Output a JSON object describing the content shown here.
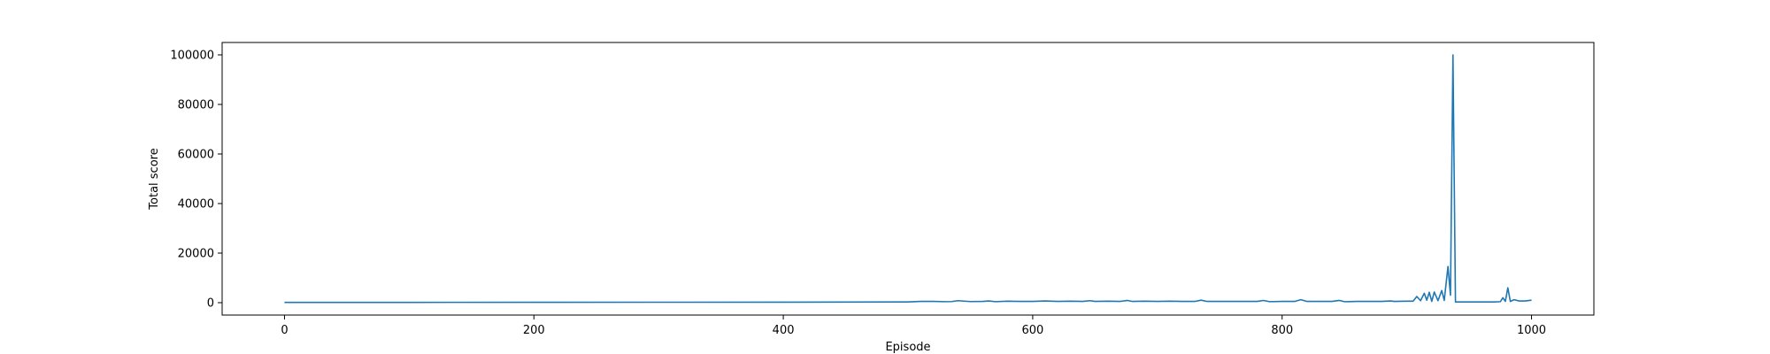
{
  "chart_data": {
    "type": "line",
    "title": "",
    "xlabel": "Episode",
    "ylabel": "Total score",
    "xlim": [
      -50,
      1050
    ],
    "ylim": [
      -5000,
      105000
    ],
    "xticks": [
      0,
      200,
      400,
      600,
      800,
      1000
    ],
    "yticks": [
      0,
      20000,
      40000,
      60000,
      80000,
      100000
    ],
    "grid": false,
    "legend": "none",
    "series": [
      {
        "name": "Total score",
        "color": "#1f77b4",
        "x": [
          0,
          100,
          200,
          300,
          400,
          450,
          500,
          510,
          520,
          530,
          535,
          540,
          550,
          560,
          565,
          570,
          580,
          590,
          600,
          610,
          620,
          630,
          640,
          646,
          650,
          660,
          670,
          676,
          680,
          690,
          700,
          710,
          720,
          730,
          735,
          740,
          750,
          760,
          770,
          780,
          785,
          790,
          800,
          810,
          815,
          820,
          830,
          840,
          846,
          850,
          860,
          870,
          880,
          887,
          890,
          900,
          905,
          908,
          911,
          914,
          916,
          918,
          920,
          922,
          925,
          928,
          930,
          933,
          935,
          937,
          939,
          940,
          945,
          950,
          960,
          970,
          975,
          977,
          979,
          981,
          983,
          986,
          990,
          995,
          1000
        ],
        "values": [
          100,
          120,
          150,
          180,
          200,
          250,
          300,
          500,
          500,
          400,
          450,
          800,
          450,
          500,
          700,
          400,
          600,
          500,
          500,
          700,
          500,
          600,
          500,
          800,
          500,
          600,
          500,
          900,
          500,
          600,
          500,
          600,
          500,
          500,
          1000,
          500,
          500,
          500,
          500,
          500,
          900,
          400,
          500,
          500,
          1200,
          500,
          500,
          500,
          900,
          400,
          500,
          500,
          500,
          700,
          500,
          600,
          600,
          2500,
          800,
          3800,
          1000,
          4200,
          500,
          4300,
          800,
          4900,
          900,
          14600,
          3000,
          100000,
          300,
          300,
          300,
          300,
          300,
          300,
          400,
          2000,
          500,
          6000,
          500,
          1200,
          700,
          700,
          1000
        ]
      }
    ]
  }
}
